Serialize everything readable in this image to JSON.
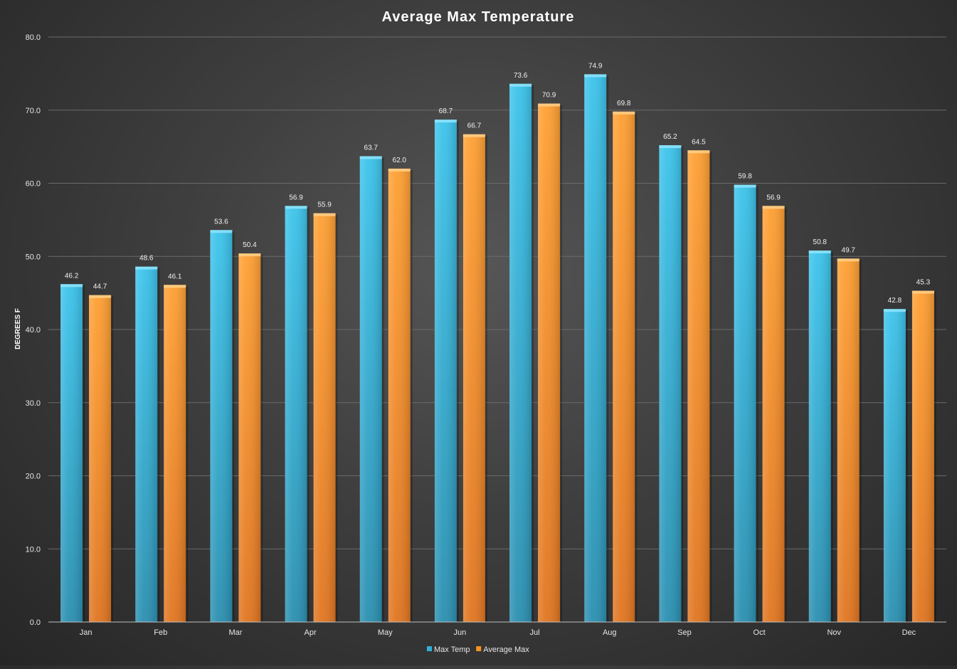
{
  "chart_data": {
    "type": "bar",
    "title": "Average Max Temperature",
    "ylabel": "DEGREES F",
    "xlabel": "",
    "ylim": [
      0,
      80
    ],
    "yticks": [
      "0.0",
      "10.0",
      "20.0",
      "30.0",
      "40.0",
      "50.0",
      "60.0",
      "70.0",
      "80.0"
    ],
    "grid": true,
    "legend_position": "bottom",
    "categories": [
      "Jan",
      "Feb",
      "Mar",
      "Apr",
      "May",
      "Jun",
      "Jul",
      "Aug",
      "Sep",
      "Oct",
      "Nov",
      "Dec"
    ],
    "series": [
      {
        "name": "Max Temp",
        "color": "#2fb0d8",
        "values": [
          46.2,
          48.6,
          53.6,
          56.9,
          63.7,
          68.7,
          73.6,
          74.9,
          65.2,
          59.8,
          50.8,
          42.8
        ]
      },
      {
        "name": "Average Max",
        "color": "#f7931e",
        "values": [
          44.7,
          46.1,
          50.4,
          55.9,
          62.0,
          66.7,
          70.9,
          69.8,
          64.5,
          56.9,
          49.7,
          45.3
        ]
      }
    ]
  }
}
